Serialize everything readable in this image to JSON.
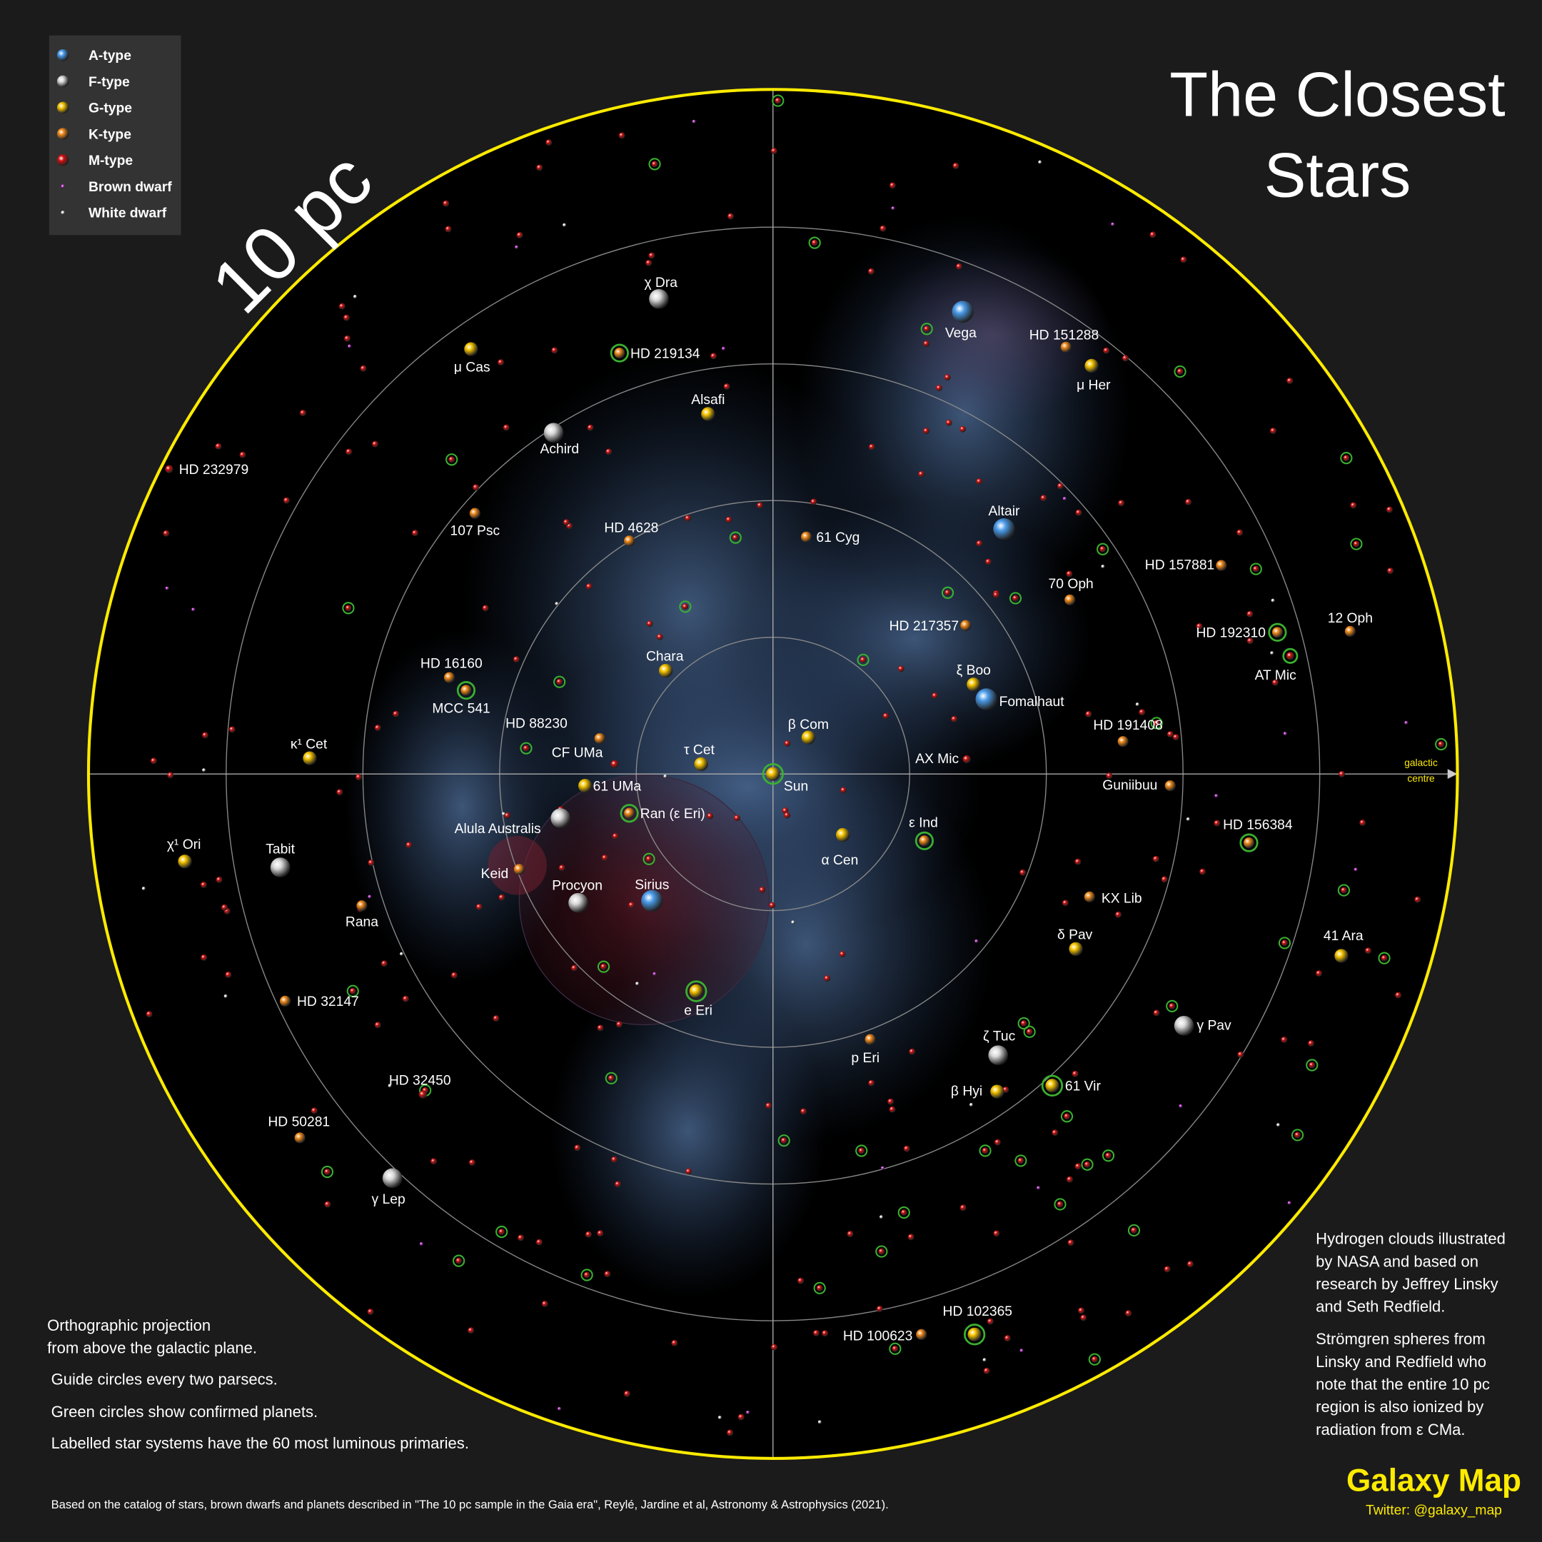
{
  "title_lines": [
    "The Closest",
    "Stars"
  ],
  "scale_label": "10 pc",
  "legend": [
    {
      "label": "A-type",
      "color": "#4a9be8"
    },
    {
      "label": "F-type",
      "color": "#d8d8d8"
    },
    {
      "label": "G-type",
      "color": "#f5c400"
    },
    {
      "label": "K-type",
      "color": "#f08a1c"
    },
    {
      "label": "M-type",
      "color": "#d01010"
    },
    {
      "label": "Brown dwarf",
      "color": "#d040e0"
    },
    {
      "label": "White dwarf",
      "color": "#f0f0f0"
    }
  ],
  "axis_label": [
    "galactic",
    "centre"
  ],
  "stars": [
    {
      "name": "χ Dra",
      "type": "F-type"
    },
    {
      "name": "μ Cas",
      "type": "G-type"
    },
    {
      "name": "HD 219134",
      "type": "K-type",
      "planet": true
    },
    {
      "name": "Alsafi",
      "type": "G-type"
    },
    {
      "name": "Achird",
      "type": "F-type"
    },
    {
      "name": "Vega",
      "type": "A-type"
    },
    {
      "name": "HD 151288",
      "type": "K-type"
    },
    {
      "name": "μ Her",
      "type": "G-type"
    },
    {
      "name": "HD 232979",
      "type": "M-type"
    },
    {
      "name": "107 Psc",
      "type": "K-type"
    },
    {
      "name": "HD 4628",
      "type": "K-type"
    },
    {
      "name": "61 Cyg",
      "type": "K-type"
    },
    {
      "name": "Altair",
      "type": "A-type"
    },
    {
      "name": "HD 157881",
      "type": "K-type"
    },
    {
      "name": "70 Oph",
      "type": "K-type"
    },
    {
      "name": "12 Oph",
      "type": "K-type"
    },
    {
      "name": "HD 192310",
      "type": "K-type",
      "planet": true
    },
    {
      "name": "HD 217357",
      "type": "K-type"
    },
    {
      "name": "AT Mic",
      "type": "M-type",
      "planet": true
    },
    {
      "name": "Chara",
      "type": "G-type"
    },
    {
      "name": "HD 16160",
      "type": "K-type"
    },
    {
      "name": "ξ Boo",
      "type": "G-type"
    },
    {
      "name": "Fomalhaut",
      "type": "A-type"
    },
    {
      "name": "MCC 541",
      "type": "K-type",
      "planet": true
    },
    {
      "name": "HD 88230",
      "type": "K-type"
    },
    {
      "name": "β Com",
      "type": "G-type"
    },
    {
      "name": "HD 191408",
      "type": "K-type"
    },
    {
      "name": "κ¹ Cet",
      "type": "G-type"
    },
    {
      "name": "CF UMa",
      "type": "M-type"
    },
    {
      "name": "τ Cet",
      "type": "G-type"
    },
    {
      "name": "AX Mic",
      "type": "M-type"
    },
    {
      "name": "Sun",
      "type": "G-type",
      "planet": true
    },
    {
      "name": "61 UMa",
      "type": "G-type"
    },
    {
      "name": "Guniibuu",
      "type": "K-type"
    },
    {
      "name": "Alula Australis",
      "type": "F-type"
    },
    {
      "name": "Ran (ε Eri)",
      "type": "K-type",
      "planet": true
    },
    {
      "name": "ε Ind",
      "type": "K-type",
      "planet": true
    },
    {
      "name": "HD 156384",
      "type": "K-type",
      "planet": true
    },
    {
      "name": "α Cen",
      "type": "G-type"
    },
    {
      "name": "χ¹ Ori",
      "type": "G-type"
    },
    {
      "name": "Tabit",
      "type": "F-type"
    },
    {
      "name": "Keid",
      "type": "K-type"
    },
    {
      "name": "Procyon",
      "type": "F-type"
    },
    {
      "name": "Sirius",
      "type": "A-type"
    },
    {
      "name": "KX Lib",
      "type": "K-type"
    },
    {
      "name": "Rana",
      "type": "K-type"
    },
    {
      "name": "δ Pav",
      "type": "G-type"
    },
    {
      "name": "41 Ara",
      "type": "G-type"
    },
    {
      "name": "HD 32147",
      "type": "K-type"
    },
    {
      "name": "e Eri",
      "type": "G-type",
      "planet": true
    },
    {
      "name": "γ Pav",
      "type": "F-type"
    },
    {
      "name": "ζ Tuc",
      "type": "F-type"
    },
    {
      "name": "p Eri",
      "type": "K-type"
    },
    {
      "name": "β Hyi",
      "type": "G-type"
    },
    {
      "name": "61 Vir",
      "type": "G-type",
      "planet": true
    },
    {
      "name": "HD 32450",
      "type": "M-type"
    },
    {
      "name": "HD 50281",
      "type": "K-type"
    },
    {
      "name": "γ Lep",
      "type": "F-type"
    },
    {
      "name": "HD 102365",
      "type": "G-type",
      "planet": true
    },
    {
      "name": "HD 100623",
      "type": "K-type"
    }
  ],
  "notes_left": [
    [
      "Orthographic projection",
      "from above the galactic plane."
    ],
    [
      "Guide circles every two parsecs."
    ],
    [
      "Green circles show confirmed planets."
    ],
    [
      "Labelled star systems have the 60 most luminous primaries."
    ]
  ],
  "notes_right": [
    [
      "Hydrogen clouds illustrated",
      "by NASA and based on",
      "research by Jeffrey Linsky",
      "and Seth Redfield."
    ],
    [
      "Strömgren spheres from",
      "Linsky and Redfield who",
      "note that the entire 10 pc",
      "region is also ionized by",
      "radiation from ε CMa."
    ]
  ],
  "footer": "Based on the catalog of stars, brown dwarfs and planets described in \"The 10 pc sample in the Gaia era\", Reylé, Jardine et al, Astronomy & Astrophysics (2021).",
  "brand": "Galaxy Map",
  "twitter": "Twitter: @galaxy_map"
}
